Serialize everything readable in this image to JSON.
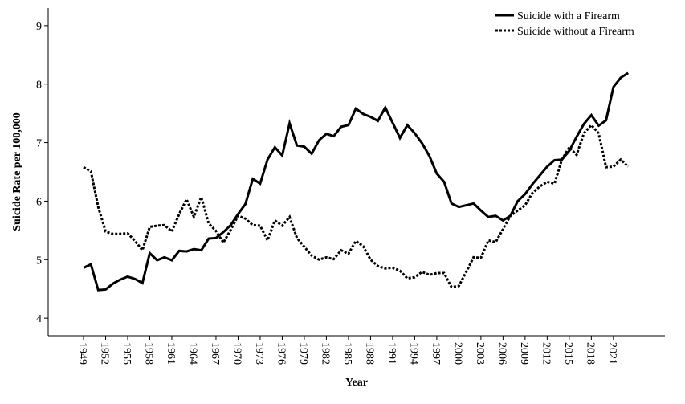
{
  "chart_data": {
    "type": "line",
    "ylabel": "Suicide Rate per 100,000",
    "xlabel": "Year",
    "x": [
      1949,
      1950,
      1951,
      1952,
      1953,
      1954,
      1955,
      1956,
      1957,
      1958,
      1959,
      1960,
      1961,
      1962,
      1963,
      1964,
      1965,
      1966,
      1967,
      1968,
      1969,
      1970,
      1971,
      1972,
      1973,
      1974,
      1975,
      1976,
      1977,
      1978,
      1979,
      1980,
      1981,
      1982,
      1983,
      1984,
      1985,
      1986,
      1987,
      1988,
      1989,
      1990,
      1991,
      1992,
      1993,
      1994,
      1995,
      1996,
      1997,
      1998,
      1999,
      2000,
      2001,
      2002,
      2003,
      2004,
      2005,
      2006,
      2007,
      2008,
      2009,
      2010,
      2011,
      2012,
      2013,
      2014,
      2015,
      2016,
      2017,
      2018,
      2019,
      2020,
      2021,
      2022,
      2023
    ],
    "series": [
      {
        "name": "Suicide with a Firearm",
        "color": "#000000",
        "dash": "solid",
        "values": [
          4.86,
          4.92,
          4.48,
          4.49,
          4.59,
          4.66,
          4.71,
          4.67,
          4.6,
          5.11,
          4.99,
          5.04,
          4.99,
          5.15,
          5.14,
          5.18,
          5.16,
          5.36,
          5.37,
          5.47,
          5.59,
          5.78,
          5.95,
          6.38,
          6.3,
          6.71,
          6.92,
          6.78,
          7.33,
          6.95,
          6.93,
          6.81,
          7.04,
          7.15,
          7.11,
          7.27,
          7.3,
          7.58,
          7.49,
          7.44,
          7.37,
          7.6,
          7.34,
          7.08,
          7.3,
          7.16,
          6.99,
          6.77,
          6.47,
          6.33,
          5.96,
          5.9,
          5.93,
          5.96,
          5.84,
          5.73,
          5.75,
          5.67,
          5.75,
          6.0,
          6.12,
          6.29,
          6.44,
          6.59,
          6.7,
          6.71,
          6.86,
          7.1,
          7.32,
          7.47,
          7.29,
          7.38,
          7.95,
          8.11,
          8.19
        ]
      },
      {
        "name": "Suicide without a Firearm",
        "color": "#000000",
        "dash": "dotted",
        "values": [
          6.58,
          6.51,
          5.9,
          5.48,
          5.44,
          5.44,
          5.45,
          5.32,
          5.16,
          5.56,
          5.58,
          5.59,
          5.48,
          5.78,
          6.03,
          5.73,
          6.07,
          5.62,
          5.49,
          5.29,
          5.51,
          5.75,
          5.7,
          5.59,
          5.58,
          5.33,
          5.67,
          5.58,
          5.73,
          5.37,
          5.22,
          5.07,
          5.0,
          5.04,
          5.01,
          5.16,
          5.1,
          5.32,
          5.23,
          5.0,
          4.89,
          4.85,
          4.86,
          4.81,
          4.68,
          4.7,
          4.79,
          4.74,
          4.77,
          4.77,
          4.53,
          4.55,
          4.79,
          5.04,
          5.03,
          5.33,
          5.3,
          5.52,
          5.75,
          5.84,
          5.93,
          6.14,
          6.25,
          6.33,
          6.3,
          6.71,
          6.92,
          6.79,
          7.16,
          7.3,
          7.16,
          6.58,
          6.59,
          6.71,
          6.59
        ]
      }
    ],
    "xlim": [
      1944.2,
      2028
    ],
    "xticks": [
      1949,
      1952,
      1955,
      1958,
      1961,
      1964,
      1967,
      1970,
      1973,
      1976,
      1979,
      1982,
      1985,
      1988,
      1991,
      1994,
      1997,
      2000,
      2003,
      2006,
      2009,
      2012,
      2015,
      2018,
      2021
    ],
    "ylim": [
      3.7,
      9.3
    ],
    "yticks": [
      4,
      5,
      6,
      7,
      8,
      9
    ],
    "legend": "upper right"
  }
}
